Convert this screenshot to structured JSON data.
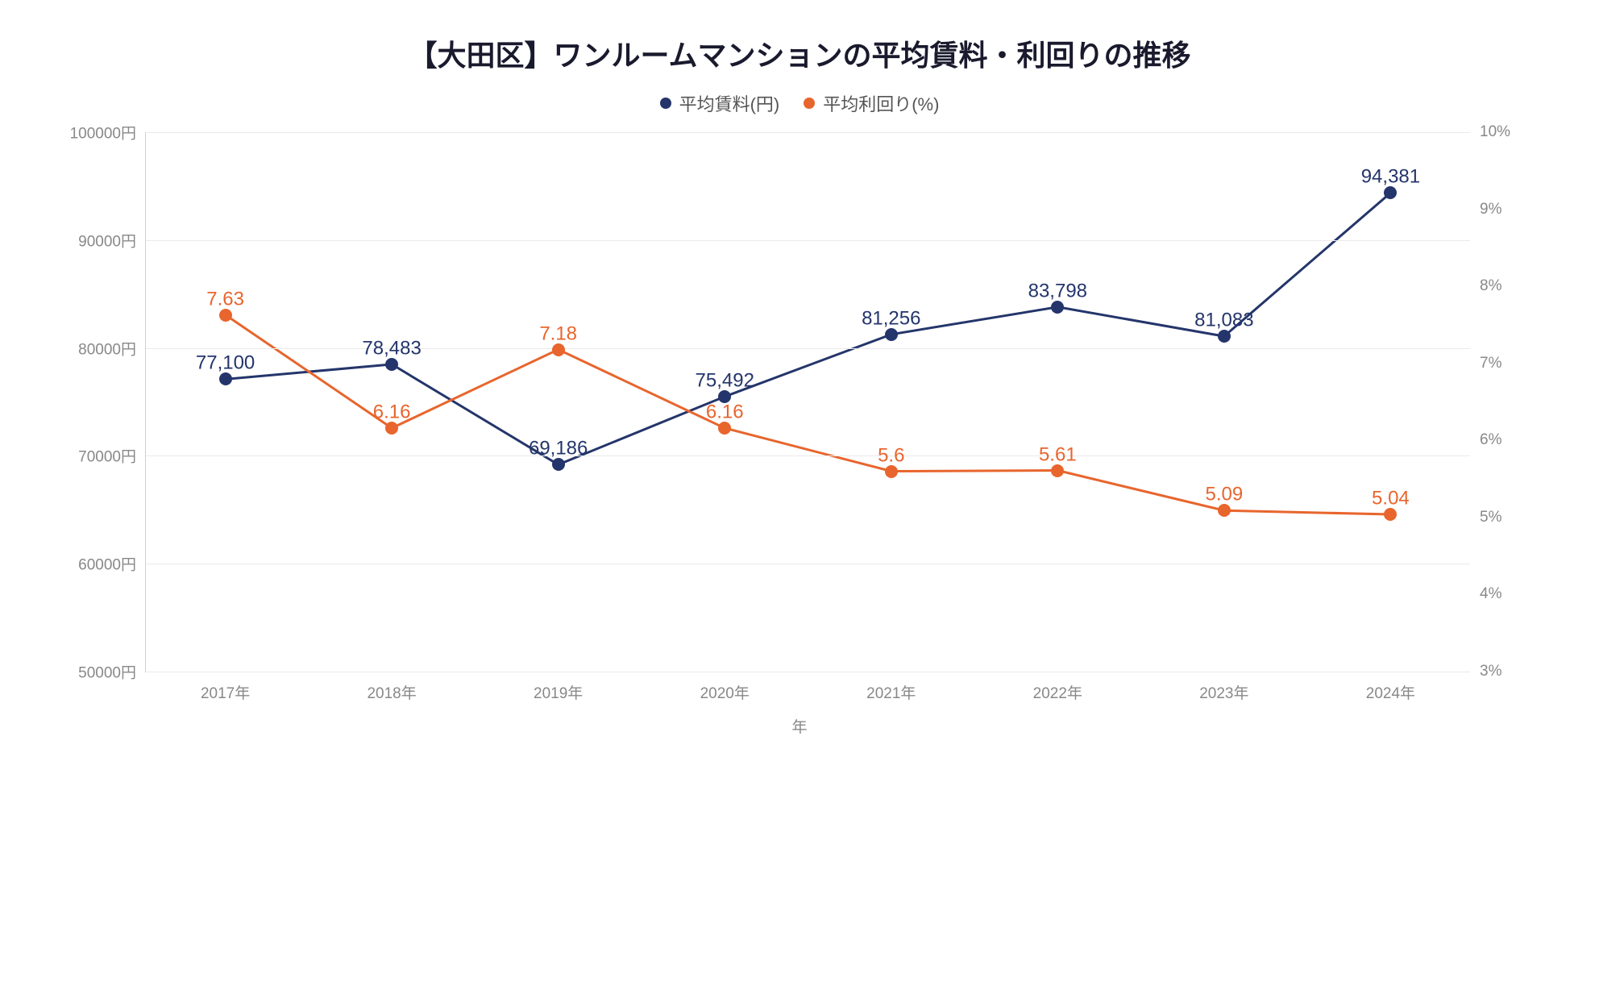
{
  "chart": {
    "type": "line",
    "title": "【大田区】ワンルームマンションの平均賃料・利回りの推移",
    "title_fontsize": 36,
    "title_color": "#1a1a2e",
    "background_color": "#ffffff",
    "grid_color": "#eaeaea",
    "axis_text_color": "#888888",
    "x_axis_title": "年",
    "categories": [
      "2017年",
      "2018年",
      "2019年",
      "2020年",
      "2021年",
      "2022年",
      "2023年",
      "2024年"
    ],
    "y_left": {
      "min": 50000,
      "max": 100000,
      "step": 10000,
      "unit": "円",
      "ticks": [
        "50000円",
        "60000円",
        "70000円",
        "80000円",
        "90000円",
        "100000円"
      ]
    },
    "y_right": {
      "min": 3,
      "max": 10,
      "step": 1,
      "unit": "%",
      "ticks": [
        "3%",
        "4%",
        "5%",
        "6%",
        "7%",
        "8%",
        "9%",
        "10%"
      ]
    },
    "series": [
      {
        "name": "平均賃料(円)",
        "axis": "left",
        "color": "#24356b",
        "line_width": 3,
        "marker_size": 16,
        "values": [
          77100,
          78483,
          69186,
          75492,
          81256,
          83798,
          81083,
          94381
        ],
        "labels": [
          "77,100",
          "78,483",
          "69,186",
          "75,492",
          "81,256",
          "83,798",
          "81,083",
          "94,381"
        ]
      },
      {
        "name": "平均利回り(%)",
        "axis": "right",
        "color": "#e8652d",
        "line_width": 3,
        "marker_size": 16,
        "values": [
          7.63,
          6.16,
          7.18,
          6.16,
          5.6,
          5.61,
          5.09,
          5.04
        ],
        "labels": [
          "7.63",
          "6.16",
          "7.18",
          "6.16",
          "5.6",
          "5.61",
          "5.09",
          "5.04"
        ]
      }
    ],
    "data_label_fontsize": 24,
    "tick_label_fontsize": 19,
    "legend_fontsize": 22
  }
}
